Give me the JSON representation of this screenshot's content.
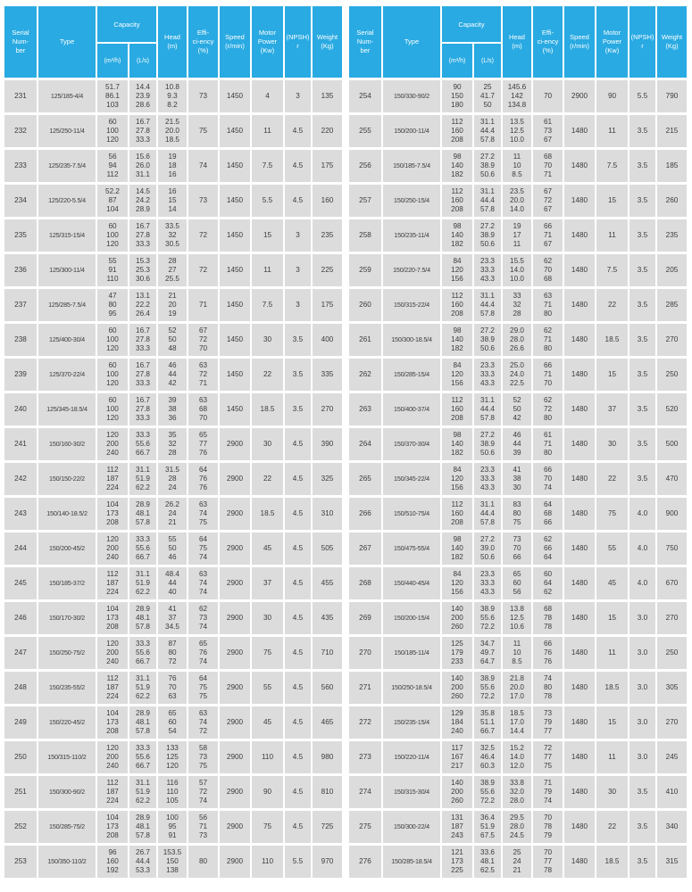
{
  "colors": {
    "header_bg": "#29aae2",
    "header_text": "#ffffff",
    "cell_bg": "#dcdcdc",
    "cell_text": "#3c3c3c",
    "page_bg": "#ffffff"
  },
  "header": {
    "serial": "Serial\nNum-\nber",
    "type": "Type",
    "capacity": "Capacity",
    "m3h": "(m³/h)",
    "ls": "(L/s)",
    "head": "Head\n(m)",
    "eff": "Effi-\nci-ency\n(%)",
    "speed": "Speed\n(r/min)",
    "power": "Motor\nPower\n(Kw)",
    "npsh": "(NPSH)\nr",
    "weight": "Weight\n(Kg)"
  },
  "tables": [
    {
      "name": "left",
      "rows": [
        {
          "serial": "231",
          "type": "125/185-4/4",
          "m3h": "51.7\n86.1\n103",
          "ls": "14.4\n23.9\n28.6",
          "head": "10.8\n9.3\n8.2",
          "eff": "73",
          "speed": "1450",
          "power": "4",
          "npsh": "3",
          "weight": "135"
        },
        {
          "serial": "232",
          "type": "125/250-11/4",
          "m3h": "60\n100\n120",
          "ls": "16.7\n27.8\n33.3",
          "head": "21.5\n20.0\n18.5",
          "eff": "75",
          "speed": "1450",
          "power": "11",
          "npsh": "4.5",
          "weight": "220"
        },
        {
          "serial": "233",
          "type": "125/235-7.5/4",
          "m3h": "56\n94\n112",
          "ls": "15.6\n26.0\n31.1",
          "head": "19\n18\n16",
          "eff": "74",
          "speed": "1450",
          "power": "7.5",
          "npsh": "4.5",
          "weight": "175"
        },
        {
          "serial": "234",
          "type": "125/220-5.5/4",
          "m3h": "52.2\n87\n104",
          "ls": "14.5\n24.2\n28.9",
          "head": "16\n15\n14",
          "eff": "73",
          "speed": "1450",
          "power": "5.5",
          "npsh": "4.5",
          "weight": "160"
        },
        {
          "serial": "235",
          "type": "125/315-15/4",
          "m3h": "60\n100\n120",
          "ls": "16.7\n27.8\n33.3",
          "head": "33.5\n32\n30.5",
          "eff": "72",
          "speed": "1450",
          "power": "15",
          "npsh": "3",
          "weight": "235"
        },
        {
          "serial": "236",
          "type": "125/300-11/4",
          "m3h": "55\n91\n110",
          "ls": "15.3\n25.3\n30.6",
          "head": "28\n27\n25.5",
          "eff": "72",
          "speed": "1450",
          "power": "11",
          "npsh": "3",
          "weight": "225"
        },
        {
          "serial": "237",
          "type": "125/285-7.5/4",
          "m3h": "47\n80\n95",
          "ls": "13.1\n22.2\n26.4",
          "head": "21\n20\n19",
          "eff": "71",
          "speed": "1450",
          "power": "7.5",
          "npsh": "3",
          "weight": "175"
        },
        {
          "serial": "238",
          "type": "125/400-30/4",
          "m3h": "60\n100\n120",
          "ls": "16.7\n27.8\n33.3",
          "head": "52\n50\n48",
          "eff": "67\n72\n70",
          "speed": "1450",
          "power": "30",
          "npsh": "3.5",
          "weight": "400"
        },
        {
          "serial": "239",
          "type": "125/370-22/4",
          "m3h": "60\n100\n120",
          "ls": "16.7\n27.8\n33.3",
          "head": "46\n44\n42",
          "eff": "63\n72\n71",
          "speed": "1450",
          "power": "22",
          "npsh": "3.5",
          "weight": "335"
        },
        {
          "serial": "240",
          "type": "125/345-18.5/4",
          "m3h": "60\n100\n120",
          "ls": "16.7\n27.8\n33.3",
          "head": "39\n38\n36",
          "eff": "63\n68\n70",
          "speed": "1450",
          "power": "18.5",
          "npsh": "3.5",
          "weight": "270"
        },
        {
          "serial": "241",
          "type": "150/160-30/2",
          "m3h": "120\n200\n240",
          "ls": "33.3\n55.6\n66.7",
          "head": "35\n32\n28",
          "eff": "65\n77\n76",
          "speed": "2900",
          "power": "30",
          "npsh": "4.5",
          "weight": "390"
        },
        {
          "serial": "242",
          "type": "150/150-22/2",
          "m3h": "112\n187\n224",
          "ls": "31.1\n51.9\n62.2",
          "head": "31.5\n28\n24",
          "eff": "64\n76\n76",
          "speed": "2900",
          "power": "22",
          "npsh": "4.5",
          "weight": "325"
        },
        {
          "serial": "243",
          "type": "150/140-18.5/2",
          "m3h": "104\n173\n208",
          "ls": "28.9\n48.1\n57.8",
          "head": "26.2\n24\n21",
          "eff": "63\n74\n75",
          "speed": "2900",
          "power": "18.5",
          "npsh": "4.5",
          "weight": "310"
        },
        {
          "serial": "244",
          "type": "150/200-45/2",
          "m3h": "120\n200\n240",
          "ls": "33.3\n55.6\n66.7",
          "head": "55\n50\n46",
          "eff": "64\n75\n74",
          "speed": "2900",
          "power": "45",
          "npsh": "4.5",
          "weight": "505"
        },
        {
          "serial": "245",
          "type": "150/185-37/2",
          "m3h": "112\n187\n224",
          "ls": "31.1\n51.9\n62.2",
          "head": "48.4\n44\n40",
          "eff": "63\n74\n74",
          "speed": "2900",
          "power": "37",
          "npsh": "4.5",
          "weight": "455"
        },
        {
          "serial": "246",
          "type": "150/170-30/2",
          "m3h": "104\n173\n208",
          "ls": "28.9\n48.1\n57.8",
          "head": "41\n37\n34.5",
          "eff": "62\n73\n74",
          "speed": "2900",
          "power": "30",
          "npsh": "4.5",
          "weight": "435"
        },
        {
          "serial": "247",
          "type": "150/250-75/2",
          "m3h": "120\n200\n240",
          "ls": "33.3\n55.6\n66.7",
          "head": "87\n80\n72",
          "eff": "65\n76\n74",
          "speed": "2900",
          "power": "75",
          "npsh": "4.5",
          "weight": "710"
        },
        {
          "serial": "248",
          "type": "150/235-55/2",
          "m3h": "112\n187\n224",
          "ls": "31.1\n51.9\n62.2",
          "head": "76\n70\n63",
          "eff": "64\n75\n75",
          "speed": "2900",
          "power": "55",
          "npsh": "4.5",
          "weight": "560"
        },
        {
          "serial": "249",
          "type": "150/220-45/2",
          "m3h": "104\n173\n208",
          "ls": "28.9\n48.1\n57.8",
          "head": "65\n60\n54",
          "eff": "63\n74\n72",
          "speed": "2900",
          "power": "45",
          "npsh": "4.5",
          "weight": "465"
        },
        {
          "serial": "250",
          "type": "150/315-110/2",
          "m3h": "120\n200\n240",
          "ls": "33.3\n55.6\n66.7",
          "head": "133\n125\n120",
          "eff": "58\n73\n75",
          "speed": "2900",
          "power": "110",
          "npsh": "4.5",
          "weight": "980"
        },
        {
          "serial": "251",
          "type": "150/300-90/2",
          "m3h": "112\n187\n224",
          "ls": "31.1\n51.9\n62.2",
          "head": "116\n110\n105",
          "eff": "57\n72\n74",
          "speed": "2900",
          "power": "90",
          "npsh": "4.5",
          "weight": "810"
        },
        {
          "serial": "252",
          "type": "150/285-75/2",
          "m3h": "104\n173\n208",
          "ls": "28.9\n48.1\n57.8",
          "head": "100\n95\n91",
          "eff": "56\n71\n73",
          "speed": "2900",
          "power": "75",
          "npsh": "4.5",
          "weight": "725"
        },
        {
          "serial": "253",
          "type": "150/350-110/2",
          "m3h": "96\n160\n192",
          "ls": "26.7\n44.4\n53.3",
          "head": "153.5\n150\n138",
          "eff": "80",
          "speed": "2900",
          "power": "110",
          "npsh": "5.5",
          "weight": "970"
        }
      ]
    },
    {
      "name": "right",
      "rows": [
        {
          "serial": "254",
          "type": "150/330-90/2",
          "m3h": "90\n150\n180",
          "ls": "25\n41.7\n50",
          "head": "145.6\n142\n134.8",
          "eff": "70",
          "speed": "2900",
          "power": "90",
          "npsh": "5.5",
          "weight": "790"
        },
        {
          "serial": "255",
          "type": "150/200-11/4",
          "m3h": "112\n160\n208",
          "ls": "31.1\n44.4\n57.8",
          "head": "13.5\n12.5\n10.0",
          "eff": "61\n73\n67",
          "speed": "1480",
          "power": "11",
          "npsh": "3.5",
          "weight": "215"
        },
        {
          "serial": "256",
          "type": "150/185-7.5/4",
          "m3h": "98\n140\n182",
          "ls": "27.2\n38.9\n50.6",
          "head": "11\n10\n8.5",
          "eff": "68\n70\n71",
          "speed": "1480",
          "power": "7.5",
          "npsh": "3.5",
          "weight": "185"
        },
        {
          "serial": "257",
          "type": "150/250-15/4",
          "m3h": "112\n160\n208",
          "ls": "31.1\n44.4\n57.8",
          "head": "23.5\n20.0\n14.0",
          "eff": "67\n72\n67",
          "speed": "1480",
          "power": "15",
          "npsh": "3.5",
          "weight": "260"
        },
        {
          "serial": "258",
          "type": "150/235-11/4",
          "m3h": "98\n140\n182",
          "ls": "27.2\n38.9\n50.6",
          "head": "19\n17\n11",
          "eff": "66\n71\n67",
          "speed": "1480",
          "power": "11",
          "npsh": "3.5",
          "weight": "235"
        },
        {
          "serial": "259",
          "type": "150/220-7.5/4",
          "m3h": "84\n120\n156",
          "ls": "23.3\n33.3\n43.3",
          "head": "15.5\n14.0\n10.0",
          "eff": "62\n70\n68",
          "speed": "1480",
          "power": "7.5",
          "npsh": "3.5",
          "weight": "205"
        },
        {
          "serial": "260",
          "type": "150/315-22/4",
          "m3h": "112\n160\n208",
          "ls": "31.1\n44.4\n57.8",
          "head": "33\n32\n28",
          "eff": "63\n71\n80",
          "speed": "1480",
          "power": "22",
          "npsh": "3.5",
          "weight": "285"
        },
        {
          "serial": "261",
          "type": "150/300-18.5/4",
          "m3h": "98\n140\n182",
          "ls": "27.2\n38.9\n50.6",
          "head": "29.0\n28.0\n26.6",
          "eff": "62\n71\n80",
          "speed": "1480",
          "power": "18.5",
          "npsh": "3.5",
          "weight": "270"
        },
        {
          "serial": "262",
          "type": "150/285-15/4",
          "m3h": "84\n120\n156",
          "ls": "23.3\n33.3\n43.3",
          "head": "25.0\n24.0\n22.5",
          "eff": "66\n71\n70",
          "speed": "1480",
          "power": "15",
          "npsh": "3.5",
          "weight": "250"
        },
        {
          "serial": "263",
          "type": "150/400-37/4",
          "m3h": "112\n160\n208",
          "ls": "31.1\n44.4\n57.8",
          "head": "52\n50\n42",
          "eff": "62\n72\n80",
          "speed": "1480",
          "power": "37",
          "npsh": "3.5",
          "weight": "520"
        },
        {
          "serial": "264",
          "type": "150/370-30/4",
          "m3h": "98\n140\n182",
          "ls": "27.2\n38.9\n50.6",
          "head": "46\n44\n39",
          "eff": "61\n71\n80",
          "speed": "1480",
          "power": "30",
          "npsh": "3.5",
          "weight": "500"
        },
        {
          "serial": "265",
          "type": "150/345-22/4",
          "m3h": "84\n120\n156",
          "ls": "23.3\n33.3\n43.3",
          "head": "41\n38\n30",
          "eff": "66\n70\n74",
          "speed": "1480",
          "power": "22",
          "npsh": "3.5",
          "weight": "470"
        },
        {
          "serial": "266",
          "type": "150/510-75/4",
          "m3h": "112\n160\n208",
          "ls": "31.1\n44.4\n57.8",
          "head": "83\n80\n75",
          "eff": "64\n68\n66",
          "speed": "1480",
          "power": "75",
          "npsh": "4.0",
          "weight": "900"
        },
        {
          "serial": "267",
          "type": "150/475-55/4",
          "m3h": "98\n140\n182",
          "ls": "27.2\n39.0\n50.6",
          "head": "73\n70\n66",
          "eff": "62\n66\n64",
          "speed": "1480",
          "power": "55",
          "npsh": "4.0",
          "weight": "750"
        },
        {
          "serial": "268",
          "type": "150/440-45/4",
          "m3h": "84\n120\n156",
          "ls": "23.3\n33.3\n43.3",
          "head": "65\n60\n56",
          "eff": "60\n64\n62",
          "speed": "1480",
          "power": "45",
          "npsh": "4.0",
          "weight": "670"
        },
        {
          "serial": "269",
          "type": "150/200-15/4",
          "m3h": "140\n200\n260",
          "ls": "38.9\n55.6\n72.2",
          "head": "13.8\n12.5\n10.6",
          "eff": "68\n78\n78",
          "speed": "1480",
          "power": "15",
          "npsh": "3.0",
          "weight": "270"
        },
        {
          "serial": "270",
          "type": "150/185-11/4",
          "m3h": "125\n179\n233",
          "ls": "34.7\n49.7\n64.7",
          "head": "11\n10\n8.5",
          "eff": "66\n76\n76",
          "speed": "1480",
          "power": "11",
          "npsh": "3.0",
          "weight": "250"
        },
        {
          "serial": "271",
          "type": "150/250-18.5/4",
          "m3h": "140\n200\n260",
          "ls": "38.9\n55.6\n72.2",
          "head": "21.8\n20.0\n17.0",
          "eff": "74\n80\n78",
          "speed": "1480",
          "power": "18.5",
          "npsh": "3.0",
          "weight": "305"
        },
        {
          "serial": "272",
          "type": "150/235-15/4",
          "m3h": "129\n184\n240",
          "ls": "35.8\n51.1\n66.7",
          "head": "18.5\n17.0\n14.4",
          "eff": "73\n79\n77",
          "speed": "1480",
          "power": "15",
          "npsh": "3.0",
          "weight": "270"
        },
        {
          "serial": "273",
          "type": "150/220-11/4",
          "m3h": "117\n167\n217",
          "ls": "32.5\n46.4\n60.3",
          "head": "15.2\n14.0\n12.0",
          "eff": "72\n77\n75",
          "speed": "1480",
          "power": "11",
          "npsh": "3.0",
          "weight": "245"
        },
        {
          "serial": "274",
          "type": "150/315-30/4",
          "m3h": "140\n200\n260",
          "ls": "38.9\n55.6\n72.2",
          "head": "33.8\n32.0\n28.0",
          "eff": "71\n79\n74",
          "speed": "1480",
          "power": "30",
          "npsh": "3.5",
          "weight": "410"
        },
        {
          "serial": "275",
          "type": "150/300-22/4",
          "m3h": "131\n187\n243",
          "ls": "36.4\n51.9\n67.5",
          "head": "29.5\n28.0\n24.5",
          "eff": "70\n78\n79",
          "speed": "1480",
          "power": "22",
          "npsh": "3.5",
          "weight": "340"
        },
        {
          "serial": "276",
          "type": "150/285-18.5/4",
          "m3h": "121\n173\n225",
          "ls": "33.6\n48.1\n62.5",
          "head": "25\n24\n21",
          "eff": "70\n77\n78",
          "speed": "1480",
          "power": "18.5",
          "npsh": "3.5",
          "weight": "315"
        }
      ]
    }
  ]
}
